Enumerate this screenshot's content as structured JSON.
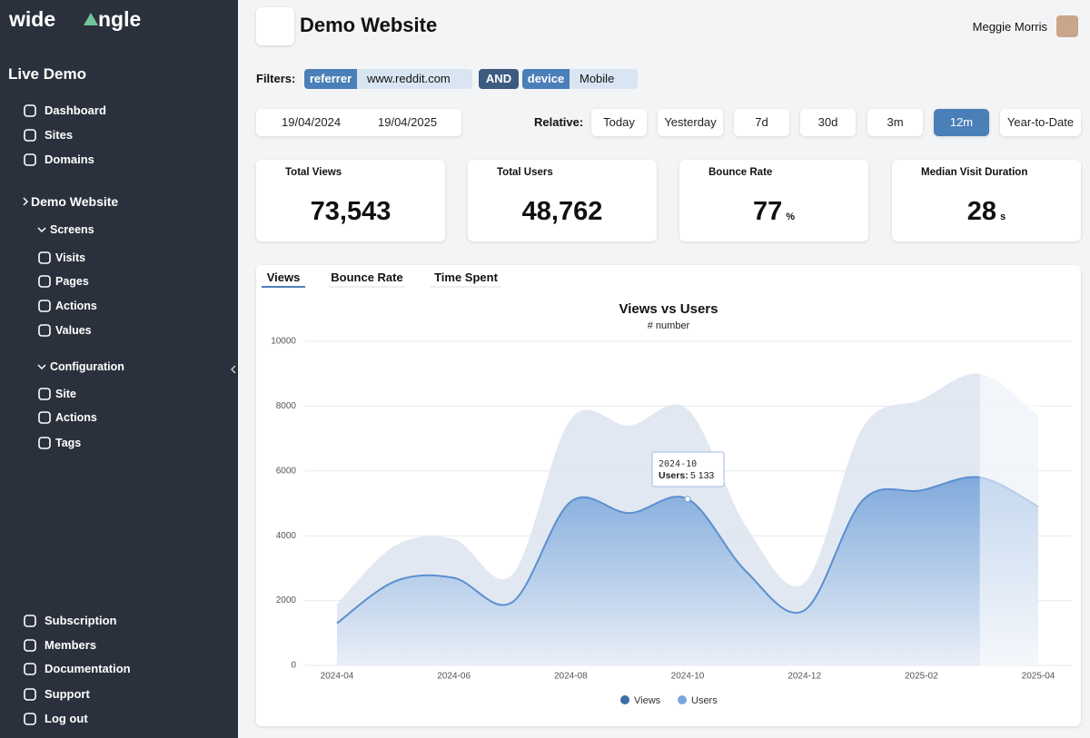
{
  "sidebar": {
    "brand": {
      "left": "wide",
      "right": "ngle"
    },
    "workspace": "Live Demo",
    "nav": [
      "Dashboard",
      "Sites",
      "Domains"
    ],
    "site": "Demo Website",
    "screens": {
      "title": "Screens",
      "items": [
        "Visits",
        "Pages",
        "Actions",
        "Values"
      ]
    },
    "configuration": {
      "title": "Configuration",
      "items": [
        "Site",
        "Actions",
        "Tags"
      ]
    },
    "footer": [
      "Subscription",
      "Members",
      "Documentation",
      "Support",
      "Log out"
    ]
  },
  "header": {
    "title": "Demo Website",
    "user": "Meggie Morris"
  },
  "filters": {
    "label": "Filters:",
    "chips": [
      {
        "key": "referrer",
        "value": "www.reddit.com"
      },
      {
        "key": "device",
        "value": "Mobile"
      }
    ],
    "joiner": "AND"
  },
  "date_range": {
    "from": "19/04/2024",
    "to": "19/04/2025"
  },
  "relative": {
    "label": "Relative:",
    "options": [
      "Today",
      "Yesterday",
      "7d",
      "30d",
      "3m",
      "12m",
      "Year-to-Date"
    ],
    "active": 5
  },
  "stats": [
    {
      "label": "Total Views",
      "value": "73,543"
    },
    {
      "label": "Total Users",
      "value": "48,762"
    },
    {
      "label": "Bounce Rate",
      "value": "77",
      "unit": "%"
    },
    {
      "label": "Median Visit Duration",
      "value": "28",
      "unit": "s"
    }
  ],
  "tabs": {
    "items": [
      "Views",
      "Bounce Rate",
      "Time Spent"
    ],
    "active": 0
  },
  "chart_data": {
    "type": "area",
    "title": "Views vs Users",
    "subtitle": "# number",
    "categories": [
      "2024-04",
      null,
      "2024-06",
      null,
      "2024-08",
      null,
      "2024-10",
      null,
      "2024-12",
      null,
      "2025-02",
      null,
      "2025-04"
    ],
    "series": [
      {
        "name": "Views",
        "color": "#3d6ea8",
        "values": [
          1900,
          3700,
          3900,
          2800,
          7600,
          7400,
          7900,
          4300,
          2550,
          7350,
          8200,
          9000,
          7700
        ]
      },
      {
        "name": "Users",
        "color": "#7aa7dc",
        "values": [
          1300,
          2600,
          2700,
          1950,
          5050,
          4700,
          5133,
          2900,
          1700,
          5100,
          5400,
          5800,
          4900
        ]
      }
    ],
    "ylim": [
      0,
      10000
    ],
    "yticks": [
      0,
      2000,
      4000,
      6000,
      8000,
      10000
    ],
    "grid": true,
    "legend": "bottom"
  },
  "tooltip": {
    "title": "2024-10",
    "label": "Users:",
    "value": "5 133"
  }
}
